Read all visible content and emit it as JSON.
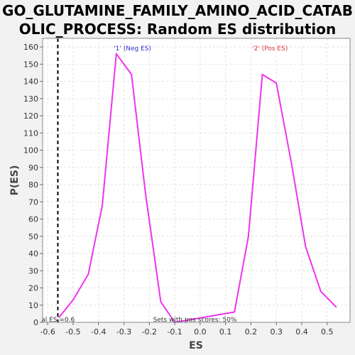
{
  "chart_data": {
    "type": "line",
    "title_lines": [
      "GO_GLUTAMINE_FAMILY_AMINO_ACID_CATAB",
      "OLIC_PROCESS: Random ES distribution"
    ],
    "xlabel": "ES",
    "ylabel": "P(ES)",
    "xlim": [
      -0.62,
      0.59
    ],
    "ylim": [
      0,
      165
    ],
    "xticks": [
      -0.6,
      -0.5,
      -0.4,
      -0.3,
      -0.2,
      -0.1,
      0.0,
      0.1,
      0.2,
      0.3,
      0.4,
      0.5
    ],
    "xtick_labels": [
      "-0.6",
      "-0.5",
      "-0.4",
      "-0.3",
      "-0.2",
      "-0.1",
      "0.0",
      "0.1",
      "0.2",
      "0.3",
      "0.4",
      "0.5"
    ],
    "yticks": [
      0,
      10,
      20,
      30,
      40,
      50,
      60,
      70,
      80,
      90,
      100,
      110,
      120,
      130,
      140,
      150,
      160
    ],
    "ytick_labels": [
      "0",
      "10",
      "20",
      "30",
      "40",
      "50",
      "60",
      "70",
      "80",
      "90",
      "100",
      "110",
      "120",
      "130",
      "140",
      "150",
      "160"
    ],
    "grid": true,
    "series": [
      {
        "color": "#ee33ee",
        "x": [
          -0.555,
          -0.5,
          -0.44,
          -0.385,
          -0.33,
          -0.27,
          -0.215,
          -0.155,
          -0.1,
          0.135,
          0.19,
          0.245,
          0.3,
          0.36,
          0.415,
          0.475,
          0.535
        ],
        "y": [
          3,
          13,
          28,
          68,
          156,
          144,
          75,
          12,
          0,
          6,
          50,
          144,
          139,
          92,
          44,
          18,
          9
        ]
      }
    ],
    "vline": {
      "x": -0.56,
      "color": "#000000",
      "style": "dashed"
    },
    "annotations": [
      {
        "text": "'1' (Neg ES)",
        "x": -0.34,
        "y": 158,
        "color": "#3333cc"
      },
      {
        "text": "'2' (Pos ES)",
        "x": 0.205,
        "y": 158,
        "color": "#dd3333"
      },
      {
        "text": "al ES =0.6",
        "x": -0.625,
        "y": 0.5,
        "color": "#333333"
      },
      {
        "text": "Sets with pos scores: 50%",
        "x": -0.185,
        "y": 0.5,
        "color": "#333333"
      }
    ]
  }
}
